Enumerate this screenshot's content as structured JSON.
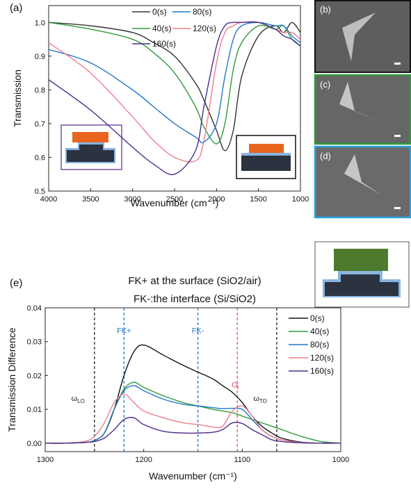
{
  "panel_labels": [
    "(b)",
    "(c)",
    "(d)"
  ],
  "chart_data": [
    {
      "type": "line",
      "panel": "(a)",
      "xlabel": "Wavenumber (cm⁻¹)",
      "ylabel": "Transmission",
      "x": [
        4000,
        3500,
        3000,
        2750,
        2500,
        2250,
        2150,
        2000,
        1900,
        1800,
        1700,
        1500,
        1300,
        1200,
        1100,
        1000
      ],
      "xlim": [
        4000,
        1000
      ],
      "xticks": [
        4000,
        3500,
        3000,
        2500,
        2000,
        1500,
        1000
      ],
      "ylim": [
        0.5,
        1.05
      ],
      "yticks": [
        0.5,
        0.6,
        0.7,
        0.8,
        0.9,
        {
          "value": 1.0,
          "label": "1.0"
        }
      ],
      "series": [
        {
          "name": "0(s)",
          "color": "#333333",
          "values": [
            1.0,
            0.99,
            0.97,
            0.94,
            0.9,
            0.82,
            0.77,
            0.68,
            0.62,
            0.68,
            0.84,
            0.96,
            0.99,
            0.97,
            1.0,
            0.97
          ]
        },
        {
          "name": "40(s)",
          "color": "#2f9a3a",
          "values": [
            1.0,
            0.98,
            0.95,
            0.91,
            0.85,
            0.75,
            0.69,
            0.64,
            0.7,
            0.86,
            0.94,
            0.99,
            0.98,
            0.99,
            0.95,
            0.93
          ]
        },
        {
          "name": "80(s)",
          "color": "#1f77c8",
          "values": [
            0.92,
            0.88,
            0.8,
            0.75,
            0.7,
            0.66,
            0.645,
            0.7,
            0.84,
            0.95,
            0.99,
            1.0,
            0.99,
            0.99,
            0.96,
            0.94
          ]
        },
        {
          "name": "120(s)",
          "color": "#f07c8c",
          "values": [
            0.94,
            0.85,
            0.72,
            0.65,
            0.6,
            0.59,
            0.65,
            0.88,
            0.97,
            0.99,
            1.0,
            1.0,
            0.98,
            0.97,
            0.97,
            0.95
          ]
        },
        {
          "name": "160(s)",
          "color": "#4b2a8a",
          "values": [
            0.83,
            0.74,
            0.63,
            0.58,
            0.55,
            0.62,
            0.75,
            0.93,
            0.99,
            1.0,
            1.0,
            1.0,
            0.98,
            0.96,
            0.95,
            0.93
          ]
        }
      ]
    },
    {
      "type": "line",
      "panel": "(e)",
      "title": [
        "FK+ at the surface (SiO2/air)",
        "FK-:the interface (Si/SiO2)"
      ],
      "xlabel": "Wavenumber (cm⁻¹)",
      "ylabel": "Transmission Difference",
      "x": [
        1300,
        1280,
        1260,
        1250,
        1240,
        1230,
        1220,
        1210,
        1200,
        1180,
        1160,
        1145,
        1130,
        1120,
        1110,
        1100,
        1090,
        1080,
        1070,
        1060,
        1040,
        1020,
        1000
      ],
      "xlim": [
        1300,
        1000
      ],
      "xticks": [
        1300,
        1200,
        1100,
        1000
      ],
      "ylim": [
        -0.0025,
        0.04
      ],
      "yticks": [
        {
          "value": 0,
          "label": "0.00"
        },
        {
          "value": 0.01,
          "label": "0.01"
        },
        {
          "value": 0.02,
          "label": "0.02"
        },
        {
          "value": 0.03,
          "label": "0.03"
        },
        {
          "value": 0.04,
          "label": "0.04"
        }
      ],
      "vlines": [
        {
          "value": 1250,
          "color": "#222222",
          "text": "ω",
          "sub": "LO",
          "y": 0.0125
        },
        {
          "value": 1220,
          "color": "#1f77c8",
          "text": "FK+",
          "y": 0.0325
        },
        {
          "value": 1145,
          "color": "#1f77c8",
          "text": "FK-",
          "y": 0.0325
        },
        {
          "value": 1105,
          "color": "#e0506a",
          "text": "O",
          "sub": "i",
          "y": 0.0165
        },
        {
          "value": 1065,
          "color": "#222222",
          "text": "ω",
          "sub": "TO",
          "y": 0.0125
        }
      ],
      "series": [
        {
          "name": "0(s)",
          "color": "#111111",
          "values": [
            0,
            0,
            0.0002,
            0.0008,
            0.003,
            0.01,
            0.02,
            0.027,
            0.029,
            0.026,
            0.023,
            0.021,
            0.019,
            0.017,
            0.015,
            0.012,
            0.008,
            0.005,
            0.003,
            0.0015,
            0.0003,
            0,
            0
          ]
        },
        {
          "name": "40(s)",
          "color": "#2f9a3a",
          "values": [
            0,
            0,
            0.0002,
            0.0008,
            0.003,
            0.01,
            0.016,
            0.018,
            0.0165,
            0.014,
            0.012,
            0.011,
            0.01,
            0.0095,
            0.009,
            0.008,
            0.007,
            0.006,
            0.005,
            0.004,
            0.002,
            0.0005,
            0
          ]
        },
        {
          "name": "80(s)",
          "color": "#1f77c8",
          "values": [
            0,
            0,
            0.0002,
            0.0008,
            0.003,
            0.01,
            0.0155,
            0.017,
            0.0155,
            0.013,
            0.0115,
            0.011,
            0.0105,
            0.0102,
            0.0103,
            0.01,
            0.007,
            0.004,
            0.002,
            0.001,
            0.0002,
            0,
            0
          ]
        },
        {
          "name": "120(s)",
          "color": "#f07c8c",
          "values": [
            0,
            0,
            0.0005,
            0.002,
            0.006,
            0.012,
            0.0145,
            0.012,
            0.0095,
            0.0075,
            0.006,
            0.0055,
            0.0048,
            0.005,
            0.0095,
            0.011,
            0.008,
            0.004,
            0.002,
            0.001,
            0.0002,
            0,
            0
          ]
        },
        {
          "name": "160(s)",
          "color": "#4b2a8a",
          "values": [
            0,
            0,
            0.0002,
            0.0005,
            0.0015,
            0.004,
            0.007,
            0.0075,
            0.0055,
            0.0035,
            0.003,
            0.003,
            0.0032,
            0.004,
            0.006,
            0.0058,
            0.004,
            0.0025,
            0.001,
            0.0005,
            0.0001,
            0,
            0
          ]
        }
      ]
    }
  ]
}
